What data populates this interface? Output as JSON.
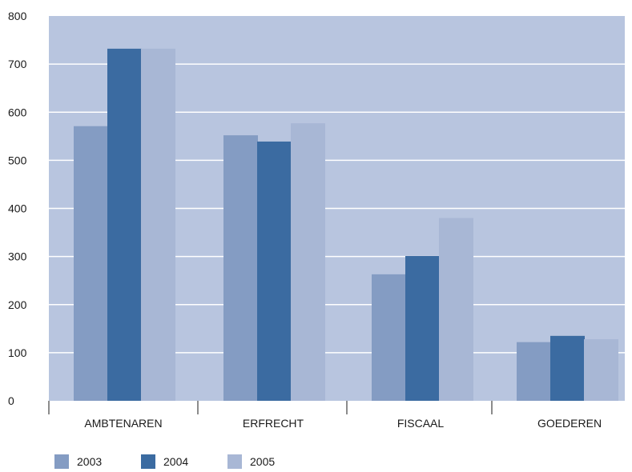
{
  "chart_data": {
    "type": "bar",
    "categories": [
      "AMBTENAREN",
      "ERFRECHT",
      "FISCAAL",
      "GOEDEREN"
    ],
    "series": [
      {
        "name": "2003",
        "values": [
          571,
          552,
          263,
          122
        ],
        "color": "#849cc3"
      },
      {
        "name": "2004",
        "values": [
          732,
          539,
          301,
          135
        ],
        "color": "#3b6ba1"
      },
      {
        "name": "2005",
        "values": [
          732,
          577,
          380,
          128
        ],
        "color": "#a8b7d5"
      }
    ],
    "y_ticks": [
      0,
      100,
      200,
      300,
      400,
      500,
      600,
      700,
      800
    ],
    "ylim": [
      0,
      800
    ],
    "grid": true,
    "plot_background": "#b8c5df",
    "gridline_color": "#ffffff",
    "legend_position": "bottom-left"
  }
}
